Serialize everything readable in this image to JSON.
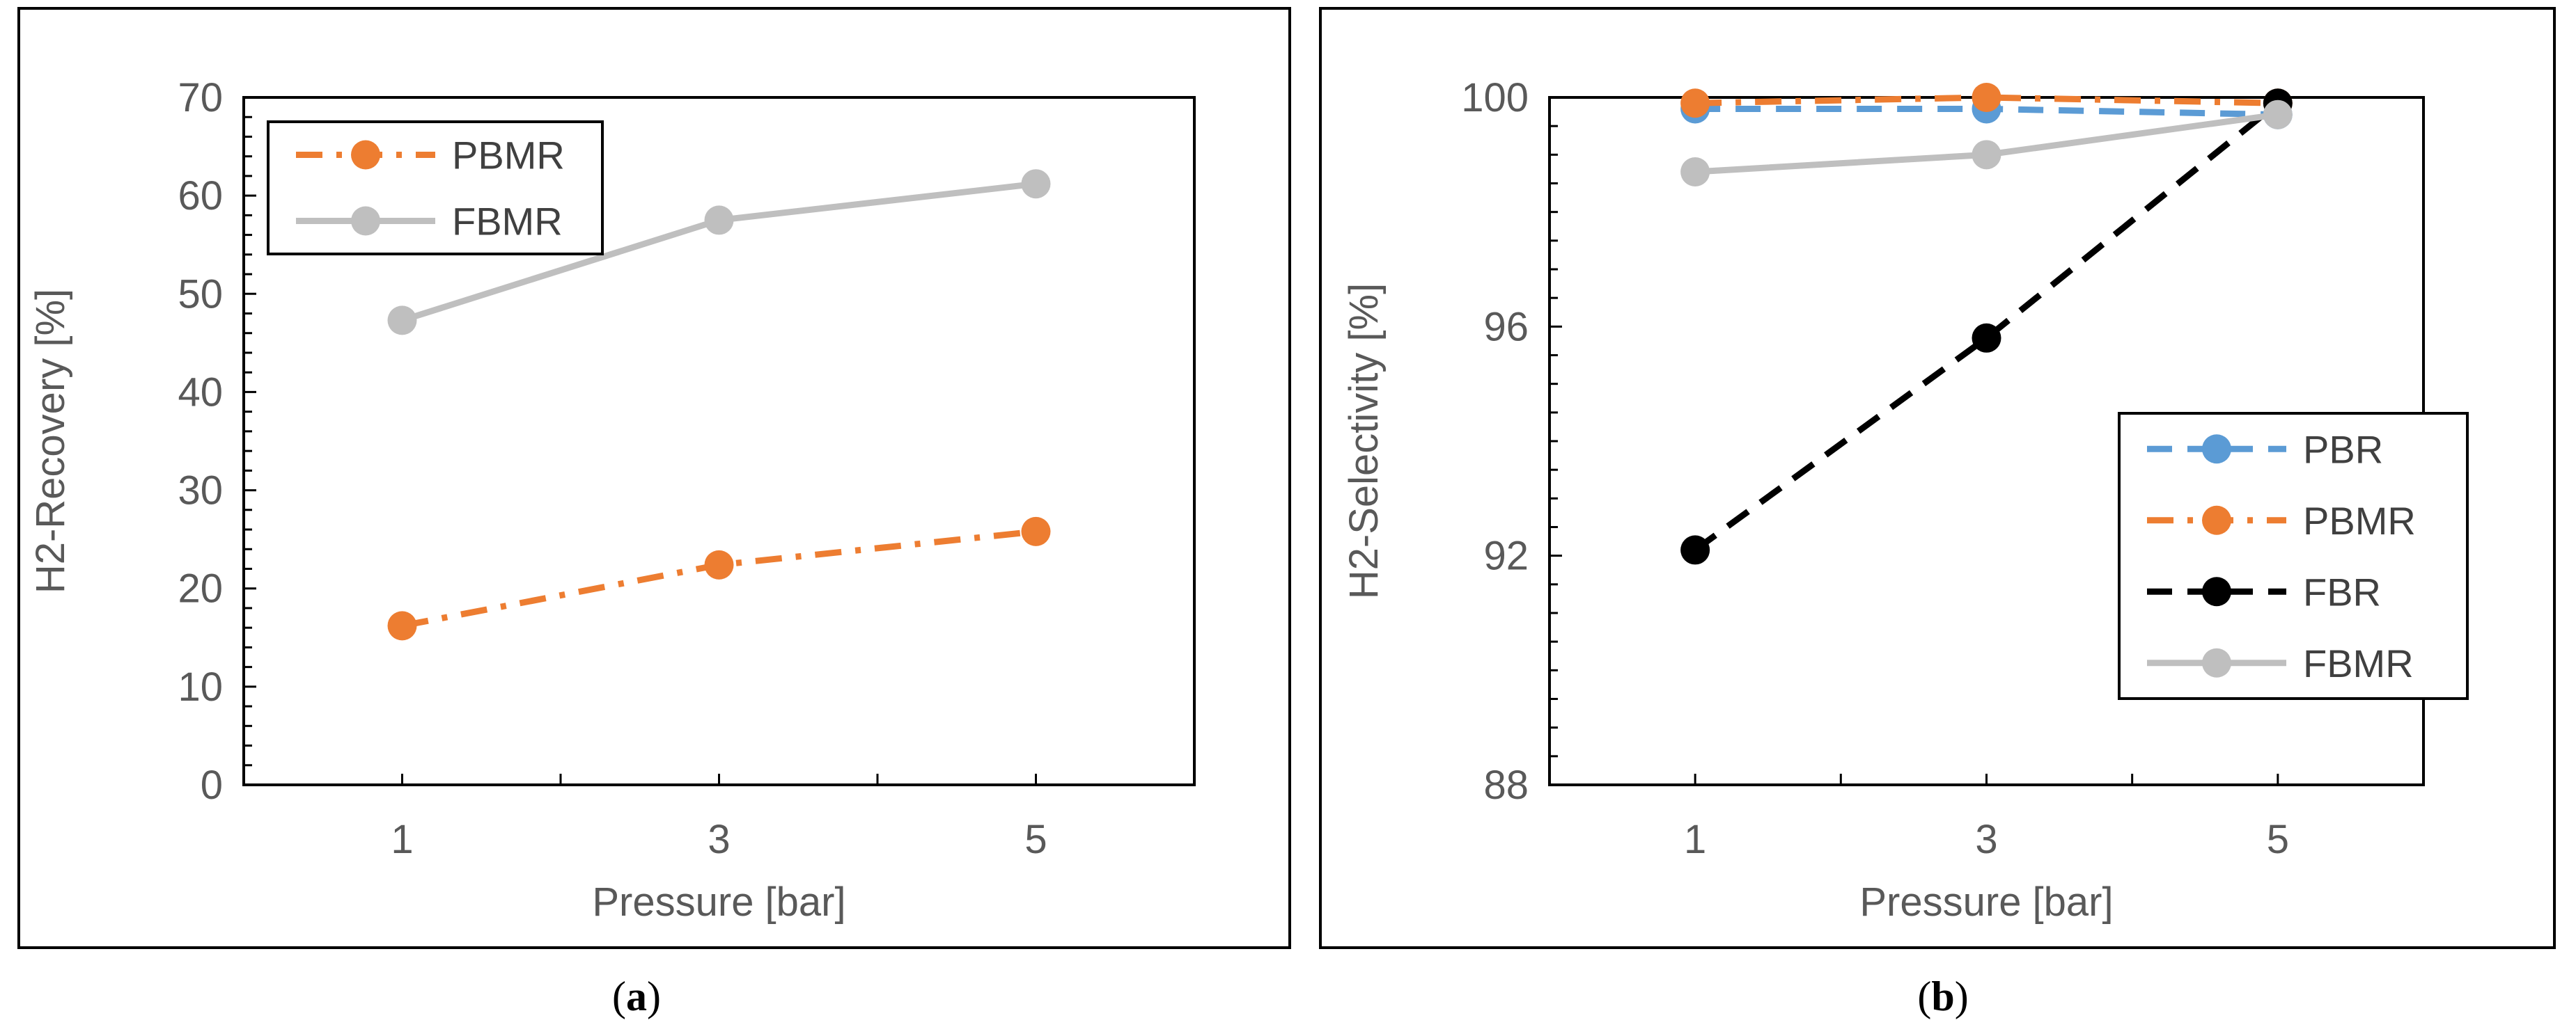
{
  "chart_data": [
    {
      "type": "line",
      "caption": "a",
      "xlabel": "Pressure [bar]",
      "ylabel": "H2-Recovery [%]",
      "xlim": [
        0,
        6
      ],
      "ylim": [
        0,
        70
      ],
      "xticks": [
        1,
        3,
        5
      ],
      "yticks": [
        0,
        10,
        20,
        30,
        40,
        50,
        60,
        70
      ],
      "grid": false,
      "legend_position": "top-left",
      "series": [
        {
          "name": "PBMR",
          "x": [
            1,
            3,
            5
          ],
          "values": [
            16.2,
            22.4,
            25.8
          ],
          "color": "#ED7D31",
          "dash": "dash-dot"
        },
        {
          "name": "FBMR",
          "x": [
            1,
            3,
            5
          ],
          "values": [
            47.3,
            57.5,
            61.2
          ],
          "color": "#BFBFBF",
          "dash": "solid"
        }
      ]
    },
    {
      "type": "line",
      "caption": "b",
      "xlabel": "Pressure [bar]",
      "ylabel": "H2-Selectivity [%]",
      "xlim": [
        0,
        6
      ],
      "ylim": [
        88,
        100
      ],
      "xticks": [
        1,
        3,
        5
      ],
      "yticks": [
        88,
        92,
        96,
        100
      ],
      "grid": false,
      "legend_position": "bottom-right",
      "series": [
        {
          "name": "PBR",
          "x": [
            1,
            3,
            5
          ],
          "values": [
            99.8,
            99.8,
            99.7
          ],
          "color": "#5B9BD5",
          "dash": "dashed"
        },
        {
          "name": "PBMR",
          "x": [
            1,
            3,
            5
          ],
          "values": [
            99.9,
            100.0,
            99.9
          ],
          "color": "#ED7D31",
          "dash": "dash-dot"
        },
        {
          "name": "FBR",
          "x": [
            1,
            3,
            5
          ],
          "values": [
            92.1,
            95.8,
            99.9
          ],
          "color": "#000000",
          "dash": "dashed"
        },
        {
          "name": "FBMR",
          "x": [
            1,
            3,
            5
          ],
          "values": [
            98.7,
            99.0,
            99.7
          ],
          "color": "#BFBFBF",
          "dash": "solid"
        }
      ]
    }
  ]
}
